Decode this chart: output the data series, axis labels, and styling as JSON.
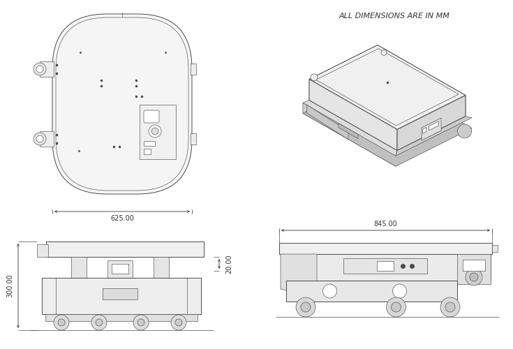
{
  "bg_color": "#ffffff",
  "line_color": "#4a4a4a",
  "dim_color": "#333333",
  "title_text": "ALL DIMENSIONS ARE IN MM",
  "title_fontsize": 8.0,
  "dim_625_text": "625.00",
  "dim_845_text": "845.00",
  "dim_300_text": "300.00",
  "dim_20_text": "20.00",
  "dim_fontsize": 7.0,
  "figsize": [
    7.35,
    5.0
  ],
  "dpi": 100,
  "lw_main": 0.7,
  "lw_thin": 0.45,
  "lw_thick": 1.0
}
